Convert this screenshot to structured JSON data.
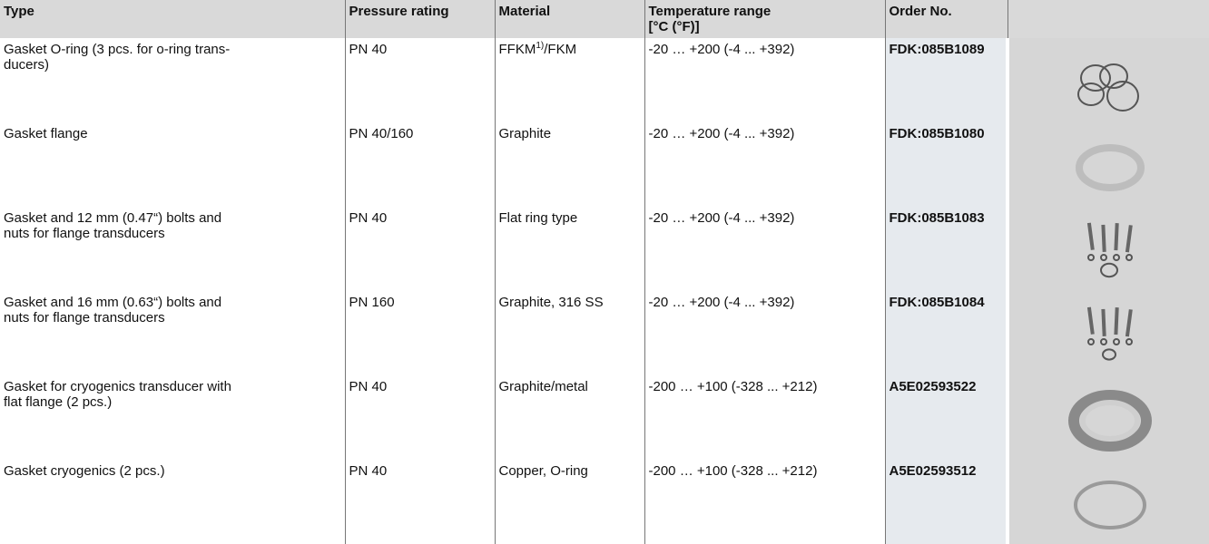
{
  "table": {
    "header": {
      "type": "Type",
      "pressure": "Pressure rating",
      "material": "Material",
      "temperature": [
        "Temperature range",
        "[°C (°F)]"
      ],
      "order": "Order No."
    },
    "rows": [
      {
        "type": [
          "Gasket O-ring (3 pcs. for o-ring trans-",
          "ducers)"
        ],
        "pressure": "PN 40",
        "material": [
          "FFKM",
          "1)",
          "/FKM"
        ],
        "temperature": "-20 … +200 (-4 ... +392)",
        "order": "FDK:085B1089"
      },
      {
        "type": [
          "Gasket flange"
        ],
        "pressure": "PN 40/160",
        "material": [
          "Graphite"
        ],
        "temperature": "-20 … +200 (-4 ... +392)",
        "order": "FDK:085B1080"
      },
      {
        "type": [
          "Gasket and 12 mm (0.47“) bolts and",
          "nuts for flange transducers"
        ],
        "pressure": "PN 40",
        "material": [
          "Flat ring type"
        ],
        "temperature": "-20 … +200 (-4 ... +392)",
        "order": "FDK:085B1083"
      },
      {
        "type": [
          "Gasket and 16 mm (0.63“) bolts and",
          "nuts for flange transducers"
        ],
        "pressure": "PN 160",
        "material": [
          "Graphite, 316 SS"
        ],
        "temperature": "-20 … +200 (-4 ... +392)",
        "order": "FDK:085B1084"
      },
      {
        "type": [
          "Gasket for cryogenics transducer with",
          "flat flange (2 pcs.)"
        ],
        "pressure": "PN 40",
        "material": [
          "Graphite/metal"
        ],
        "temperature": "-200 … +100 (-328 ... +212)",
        "order": "A5E02593522"
      },
      {
        "type": [
          "Gasket cryogenics (2 pcs.)"
        ],
        "pressure": "PN 40",
        "material": [
          "Copper, O-ring"
        ],
        "temperature": "-200 … +100 (-328 ... +212)",
        "order": "A5E02593512"
      }
    ]
  }
}
